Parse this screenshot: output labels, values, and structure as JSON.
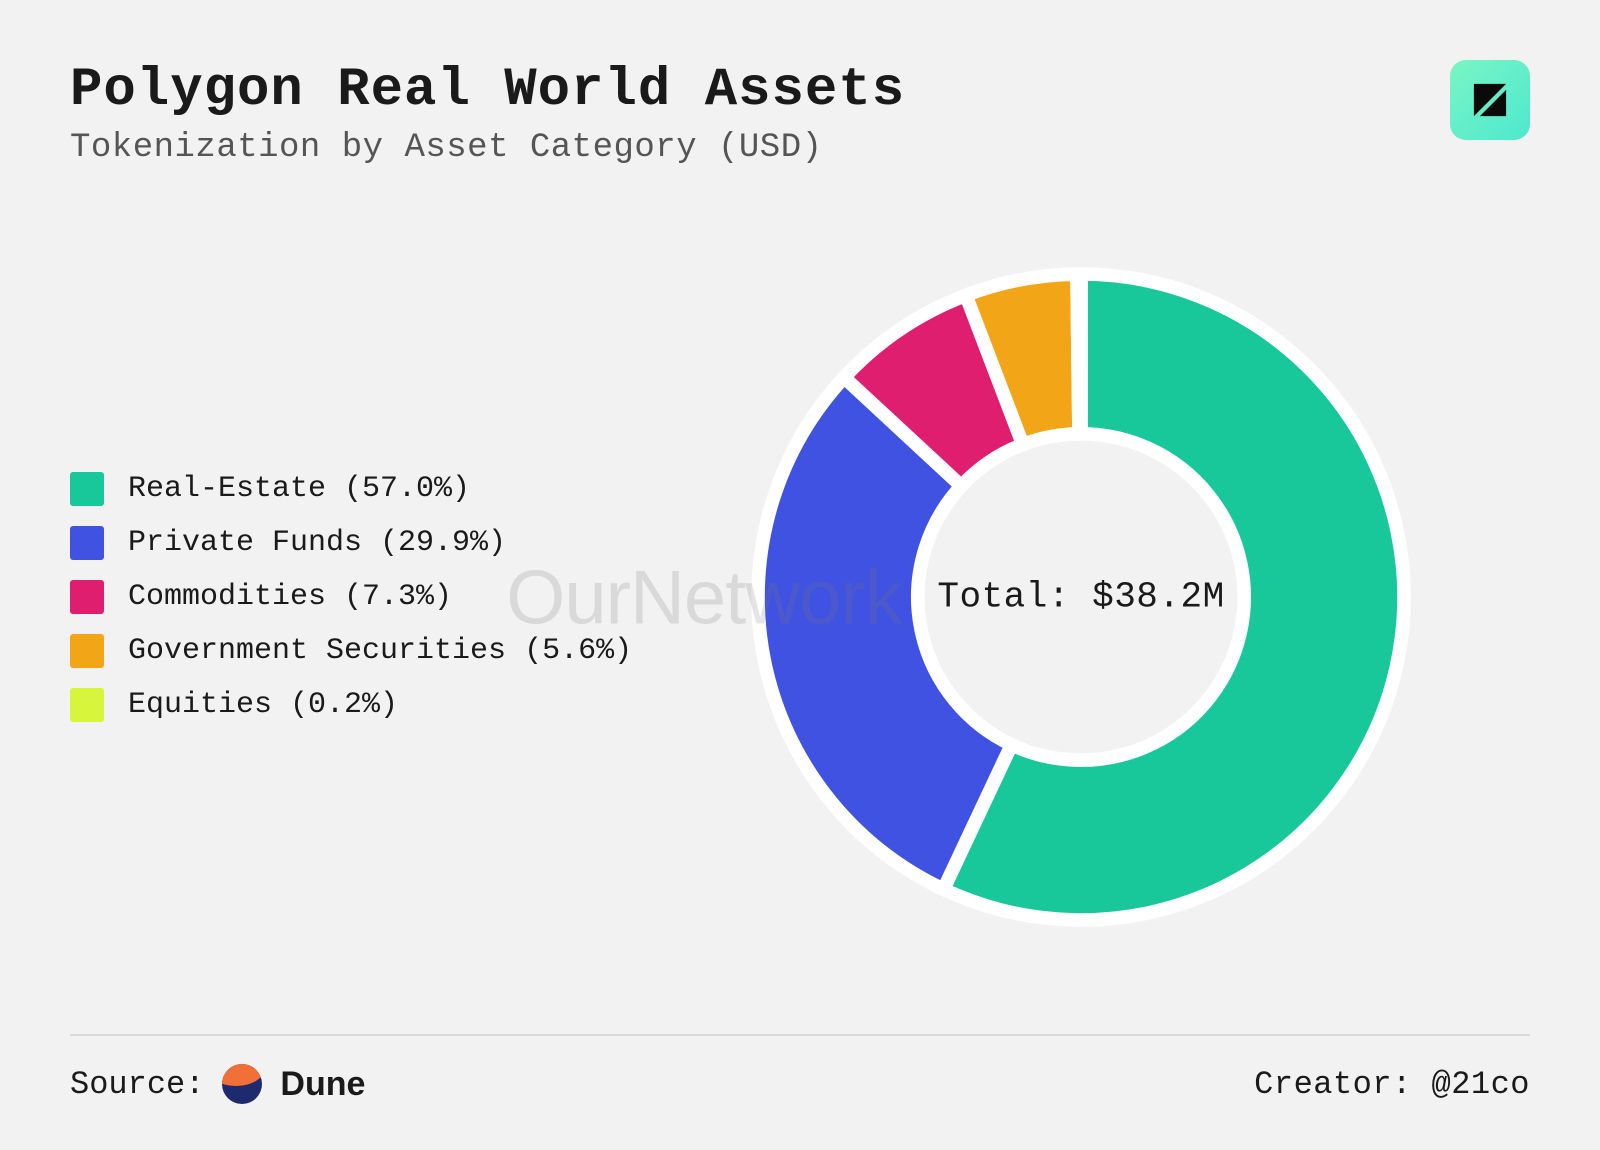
{
  "header": {
    "title": "Polygon Real World Assets",
    "subtitle": "Tokenization by Asset Category (USD)"
  },
  "watermark": "OurNetwork",
  "chart": {
    "type": "donut",
    "total_label": "Total: $38.2M",
    "start_angle_deg": 0,
    "inner_radius_pct": 48,
    "outer_radius_pct": 95,
    "stroke_color": "#ffffff",
    "stroke_width": 4,
    "background_color": "#f2f2f2",
    "slices": [
      {
        "label": "Real-Estate",
        "pct": 57.0,
        "color": "#18c79a"
      },
      {
        "label": "Private Funds",
        "pct": 29.9,
        "color": "#4052e2"
      },
      {
        "label": "Commodities",
        "pct": 7.3,
        "color": "#e01e70"
      },
      {
        "label": "Government Securities",
        "pct": 5.6,
        "color": "#f2a516"
      },
      {
        "label": "Equities",
        "pct": 0.2,
        "color": "#d7f53a"
      }
    ],
    "legend_fontsize_pt": 22,
    "title_fontsize_pt": 40,
    "subtitle_fontsize_pt": 25
  },
  "footer": {
    "source_label": "Source:",
    "source_name": "Dune",
    "creator_label": "Creator:",
    "creator_handle": "@21co"
  },
  "colors": {
    "text": "#1a1a1a",
    "subtext": "#555555",
    "divider": "#d8d8d8",
    "logo_gradient_from": "#7af5c4",
    "logo_gradient_to": "#4de8ce",
    "dune_orange": "#f07038",
    "dune_navy": "#1e2a6e"
  }
}
